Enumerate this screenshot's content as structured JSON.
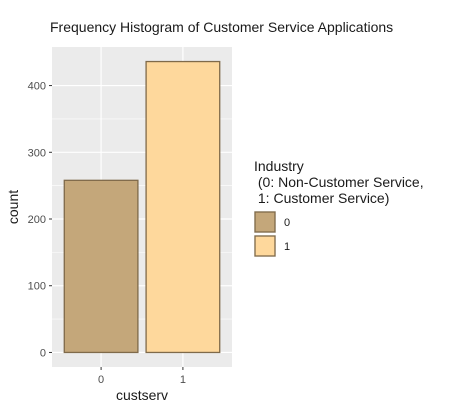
{
  "chart_data": {
    "type": "bar",
    "title": "Frequency Histogram of Customer Service Applications",
    "xlabel": "custserv",
    "ylabel": "count",
    "categories": [
      "0",
      "1"
    ],
    "values": [
      258,
      436
    ],
    "ylim": [
      -21.8,
      457.8
    ],
    "yticks": [
      0,
      100,
      200,
      300,
      400
    ],
    "grid": true,
    "panel_background": "#ebebeb",
    "bar_colors": [
      "#c4a77a",
      "#fed89c"
    ],
    "bar_outline": "#7f6a4a",
    "legend": {
      "position": "right",
      "title_lines": [
        "Industry",
        " (0: Non-Customer Service,",
        " 1: Customer Service)"
      ],
      "items": [
        {
          "label": "0",
          "color": "#c4a77a"
        },
        {
          "label": "1",
          "color": "#fed89c"
        }
      ]
    }
  }
}
